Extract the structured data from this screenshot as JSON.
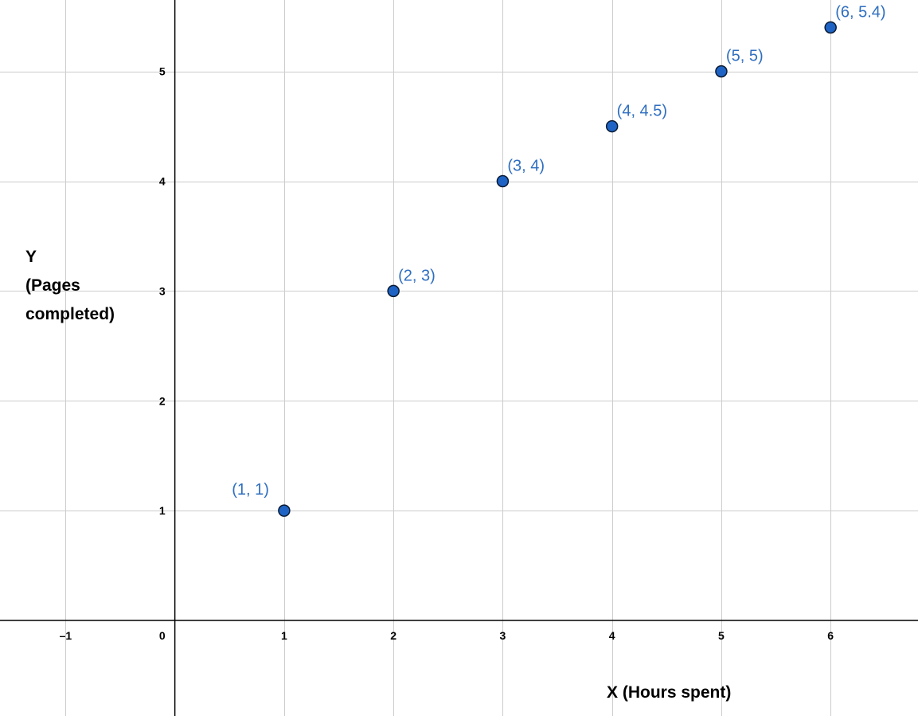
{
  "chart_data": {
    "type": "scatter",
    "title": "",
    "xlabel": "X (Hours spent)",
    "ylabel": [
      "Y",
      "(Pages",
      "completed)"
    ],
    "xlim": [
      -1.6,
      6.8
    ],
    "ylim": [
      -0.87,
      5.65
    ],
    "grid": true,
    "x_ticks": [
      {
        "value": -1,
        "label": "–1"
      },
      {
        "value": 1,
        "label": "1"
      },
      {
        "value": 2,
        "label": "2"
      },
      {
        "value": 3,
        "label": "3"
      },
      {
        "value": 4,
        "label": "4"
      },
      {
        "value": 5,
        "label": "5"
      },
      {
        "value": 6,
        "label": "6"
      }
    ],
    "y_ticks": [
      {
        "value": 1,
        "label": "1"
      },
      {
        "value": 2,
        "label": "2"
      },
      {
        "value": 3,
        "label": "3"
      },
      {
        "value": 4,
        "label": "4"
      },
      {
        "value": 5,
        "label": "5"
      }
    ],
    "origin_label": "0",
    "points": [
      {
        "x": 1,
        "y": 1,
        "label": "(1, 1)"
      },
      {
        "x": 2,
        "y": 3,
        "label": "(2, 3)"
      },
      {
        "x": 3,
        "y": 4,
        "label": "(3, 4)"
      },
      {
        "x": 4,
        "y": 4.5,
        "label": "(4, 4.5)"
      },
      {
        "x": 5,
        "y": 5,
        "label": "(5, 5)"
      },
      {
        "x": 6,
        "y": 5.4,
        "label": "(6, 5.4)"
      }
    ],
    "colors": {
      "point_fill": "#1f64c4",
      "point_stroke": "#0a1a33",
      "point_label": "#2f6fc0",
      "grid": "#cccccc",
      "axis": "#000000"
    }
  }
}
